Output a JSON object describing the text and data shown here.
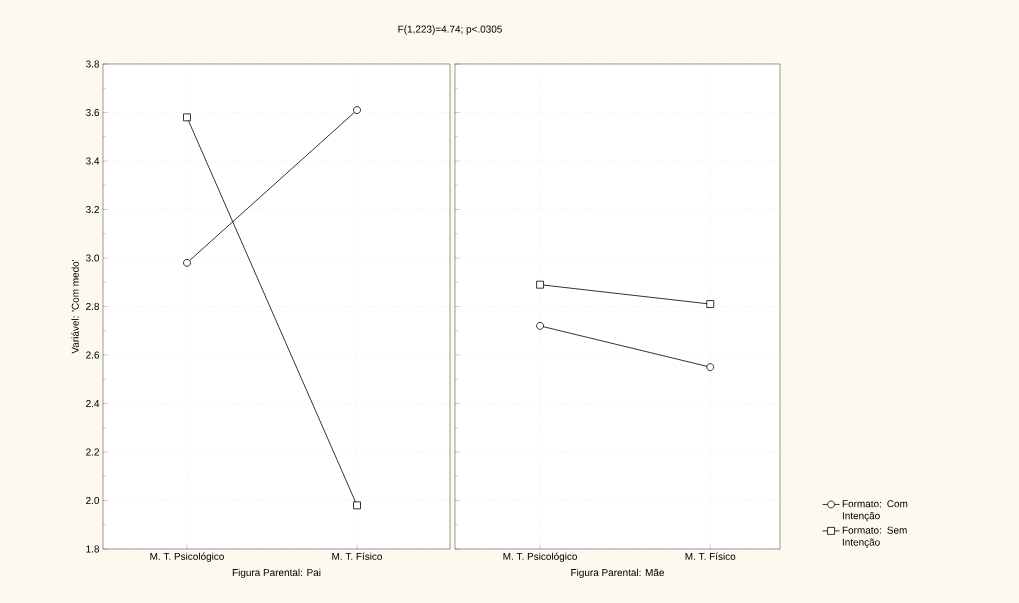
{
  "chart_data": [
    {
      "type": "line",
      "title": "F(1,223)=4.74; p<.0305",
      "categories": [
        "M. T. Psicológico",
        "M. T. Físico"
      ],
      "xlabel": "Figura Parental: Pai",
      "ylabel": "Variável: 'Com medo'",
      "series": [
        {
          "color": "#000000",
          "marker": "circle",
          "values": [
            2.98,
            3.61
          ]
        },
        {
          "color": "#000000",
          "marker": "square",
          "values": [
            3.58,
            1.98
          ]
        }
      ],
      "ylim": [
        1.8,
        3.8
      ],
      "yticks": [
        {
          "value": 1.8,
          "label": "1.8"
        },
        {
          "value": 2.0,
          "label": "2.0"
        },
        {
          "value": 2.2,
          "label": "2.2"
        },
        {
          "value": 2.4,
          "label": "2.4"
        },
        {
          "value": 2.6,
          "label": "2.6"
        },
        {
          "value": 2.8,
          "label": "2.8"
        },
        {
          "value": 3.0,
          "label": "3.0"
        },
        {
          "value": 3.2,
          "label": "3.2"
        },
        {
          "value": 3.4,
          "label": "3.4"
        },
        {
          "value": 3.6,
          "label": "3.6"
        },
        {
          "value": 3.8,
          "label": "3.8"
        }
      ],
      "grid": true,
      "line_style": "solid"
    },
    {
      "type": "line",
      "categories": [
        "M. T. Psicológico",
        "M. T. Físico"
      ],
      "xlabel": "Figura Parental: Mãe",
      "series": [
        {
          "name": "Formato: Com Intenção",
          "color": "#000000",
          "marker": "circle",
          "values": [
            2.72,
            2.55
          ]
        },
        {
          "name": "Formato: Sem Intenção",
          "color": "#000000",
          "marker": "square",
          "values": [
            2.89,
            2.81
          ]
        }
      ],
      "ylim": [
        1.8,
        3.8
      ],
      "yticks": [
        1.8,
        2.0,
        2.2,
        2.4,
        2.6,
        2.8,
        3.0,
        3.2,
        3.4,
        3.6,
        3.8
      ],
      "grid": true,
      "line_style": "solid",
      "tick_labels": "x",
      "legend": "right"
    }
  ]
}
